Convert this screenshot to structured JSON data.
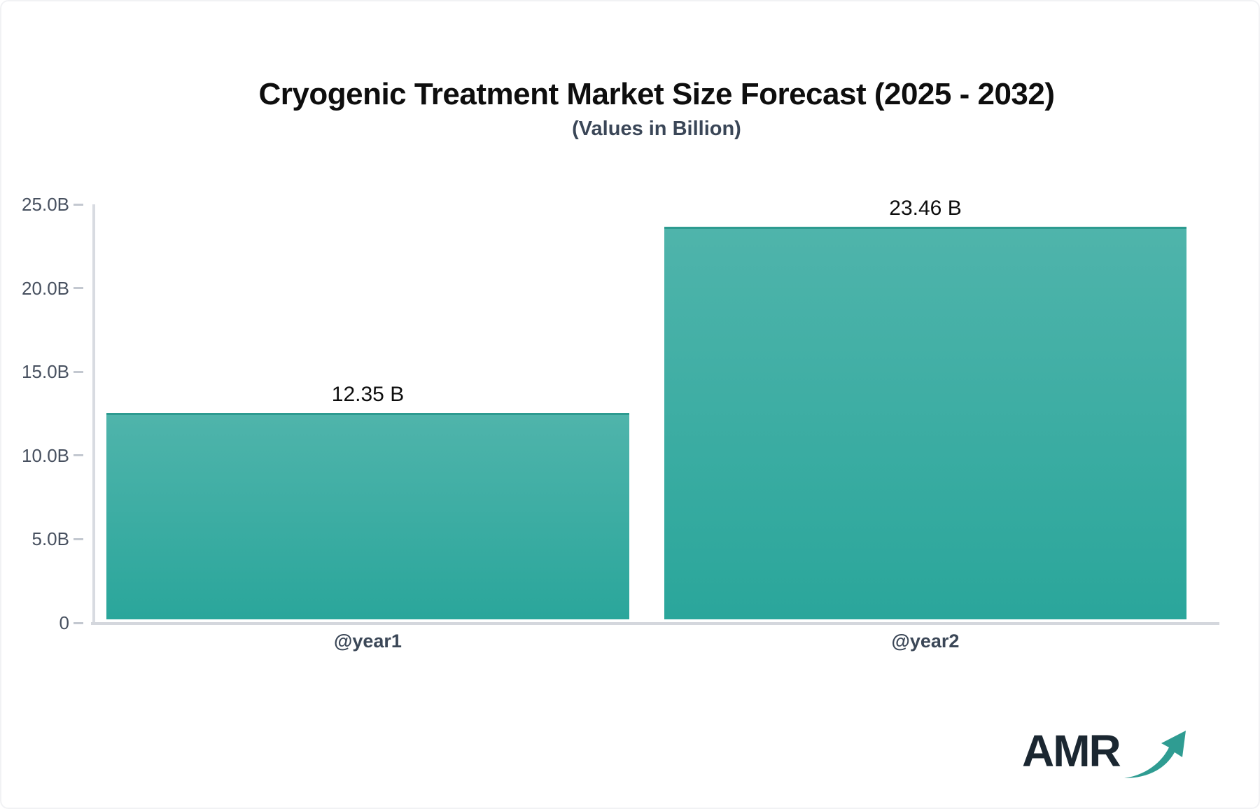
{
  "header": {
    "title": "Cryogenic Treatment Market Size Forecast (2025 - 2032)",
    "subtitle": "(Values in Billion)"
  },
  "chart_data": {
    "type": "bar",
    "title": "Cryogenic Treatment Market Size Forecast (2025 - 2032)",
    "subtitle": "(Values in Billion)",
    "categories": [
      "@year1",
      "@year2"
    ],
    "values": [
      12.35,
      23.46
    ],
    "value_labels": [
      "12.35 B",
      "23.46 B"
    ],
    "xlabel": "",
    "ylabel": "",
    "ylim": [
      0,
      25
    ],
    "yticks": [
      {
        "value": 0,
        "label": "0"
      },
      {
        "value": 5,
        "label": "5.0B"
      },
      {
        "value": 10,
        "label": "10.0B"
      },
      {
        "value": 15,
        "label": "15.0B"
      },
      {
        "value": 20,
        "label": "20.0B"
      },
      {
        "value": 25,
        "label": "25.0B"
      }
    ],
    "grid": false,
    "legend": false,
    "colors": {
      "bar_gradient_top": "#4fb4ab",
      "bar_gradient_bottom": "#2aa69b",
      "bar_top_border": "#2d9b90",
      "axis_line": "#d8dbe1",
      "tick_mark": "#c3c8d0",
      "tick_label": "#47505f",
      "value_label": "#0d0d0d",
      "category_label": "#3b4757",
      "title": "#0e0e0e",
      "subtitle": "#3a4657"
    }
  },
  "logo": {
    "text": "AMR",
    "text_color": "#1b2731",
    "arrow_icon": "growth-arrow-icon",
    "arrow_color": "#2f9c92"
  }
}
